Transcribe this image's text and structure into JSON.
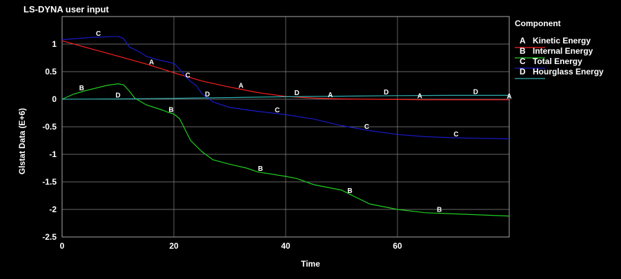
{
  "chart_data": {
    "type": "line",
    "title": "LS-DYNA user input",
    "xlabel": "Time",
    "ylabel": "Glstat Data (E+6)",
    "xlim": [
      0,
      80
    ],
    "ylim": [
      -2.5,
      1.5
    ],
    "x_ticks": [
      0,
      20,
      40,
      60
    ],
    "y_ticks": [
      1,
      0.5,
      0,
      -0.5,
      -1,
      -1.5,
      -2,
      -2.5
    ],
    "grid": true,
    "legend_title": "Component",
    "legend_position": "right",
    "series": [
      {
        "marker": "A",
        "name": "Kinetic Energy",
        "color": "#ff2020",
        "x": [
          0,
          5,
          10,
          15,
          20,
          25,
          30,
          35,
          40,
          45,
          50,
          55,
          60,
          65,
          70,
          75,
          80
        ],
        "y": [
          1.06,
          0.92,
          0.78,
          0.64,
          0.48,
          0.33,
          0.22,
          0.12,
          0.05,
          0.02,
          0.005,
          0.0,
          -0.005,
          -0.01,
          -0.01,
          -0.01,
          -0.01
        ],
        "marker_x": [
          16,
          32,
          48,
          64,
          80
        ]
      },
      {
        "marker": "B",
        "name": "Internal Energy",
        "color": "#20d020",
        "x": [
          0,
          2,
          4,
          6,
          8,
          10,
          11,
          12,
          13,
          15,
          18,
          19,
          20,
          21,
          22,
          23,
          25,
          27,
          30,
          33,
          35,
          40,
          42,
          45,
          50,
          52,
          55,
          60,
          65,
          70,
          75,
          80
        ],
        "y": [
          0.0,
          0.09,
          0.15,
          0.2,
          0.25,
          0.28,
          0.26,
          0.15,
          0.02,
          -0.1,
          -0.2,
          -0.24,
          -0.27,
          -0.35,
          -0.55,
          -0.75,
          -0.95,
          -1.1,
          -1.18,
          -1.25,
          -1.32,
          -1.4,
          -1.44,
          -1.55,
          -1.65,
          -1.75,
          -1.9,
          -2.0,
          -2.06,
          -2.08,
          -2.1,
          -2.12
        ],
        "marker_x": [
          3.5,
          19.5,
          35.5,
          51.5,
          67.5
        ]
      },
      {
        "marker": "C",
        "name": "Total Energy",
        "color": "#1a1acc",
        "x": [
          0,
          5,
          10,
          11,
          12,
          14,
          15,
          17,
          20,
          21,
          22,
          23,
          24,
          25,
          27,
          30,
          35,
          40,
          45,
          50,
          55,
          60,
          65,
          70,
          75,
          80
        ],
        "y": [
          1.08,
          1.12,
          1.14,
          1.1,
          0.95,
          0.85,
          0.78,
          0.72,
          0.65,
          0.55,
          0.42,
          0.32,
          0.25,
          0.1,
          -0.05,
          -0.15,
          -0.22,
          -0.28,
          -0.36,
          -0.48,
          -0.57,
          -0.64,
          -0.68,
          -0.7,
          -0.71,
          -0.72
        ],
        "marker_x": [
          6.5,
          22.5,
          38.5,
          54.5,
          70.5
        ]
      },
      {
        "marker": "D",
        "name": "Hourglass Energy",
        "color": "#30b0b0",
        "x": [
          0,
          10,
          20,
          30,
          40,
          50,
          60,
          70,
          80
        ],
        "y": [
          0.0,
          0.005,
          0.015,
          0.03,
          0.045,
          0.055,
          0.065,
          0.07,
          0.07
        ],
        "marker_x": [
          10,
          26,
          42,
          58,
          74
        ]
      }
    ]
  }
}
